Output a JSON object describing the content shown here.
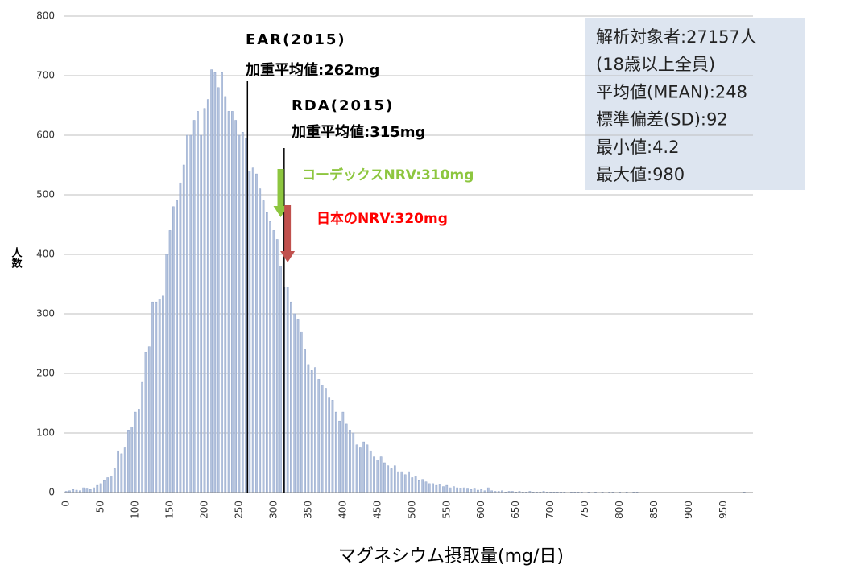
{
  "chart_data": {
    "type": "bar",
    "x_label": "マグネシウム摂取量(mg/日)",
    "y_label": "人数",
    "categories": [
      "0",
      null,
      null,
      null,
      null,
      null,
      null,
      null,
      null,
      null,
      "50",
      null,
      null,
      null,
      null,
      null,
      null,
      null,
      null,
      null,
      "100",
      null,
      null,
      null,
      null,
      null,
      null,
      null,
      null,
      null,
      "150",
      null,
      null,
      null,
      null,
      null,
      null,
      null,
      null,
      null,
      "200",
      null,
      null,
      null,
      null,
      null,
      null,
      null,
      null,
      null,
      "250",
      null,
      null,
      null,
      null,
      null,
      null,
      null,
      null,
      null,
      "300",
      null,
      null,
      null,
      null,
      null,
      null,
      null,
      null,
      null,
      "350",
      null,
      null,
      null,
      null,
      null,
      null,
      null,
      null,
      null,
      "400",
      null,
      null,
      null,
      null,
      null,
      null,
      null,
      null,
      null,
      "450",
      null,
      null,
      null,
      null,
      null,
      null,
      null,
      null,
      null,
      "500",
      null,
      null,
      null,
      null,
      null,
      null,
      null,
      null,
      null,
      "550",
      null,
      null,
      null,
      null,
      null,
      null,
      null,
      null,
      null,
      "600",
      null,
      null,
      null,
      null,
      null,
      null,
      null,
      null,
      null,
      "650",
      null,
      null,
      null,
      null,
      null,
      null,
      null,
      null,
      null,
      "700",
      null,
      null,
      null,
      null,
      null,
      null,
      null,
      null,
      null,
      "750",
      null,
      null,
      null,
      null,
      null,
      null,
      null,
      null,
      null,
      "800",
      null,
      null,
      null,
      null,
      null,
      null,
      null,
      null,
      null,
      "850",
      null,
      null,
      null,
      null,
      null,
      null,
      null,
      null,
      null,
      "900",
      null,
      null,
      null,
      null,
      null,
      null,
      null,
      null,
      null,
      "950",
      null,
      null,
      null,
      null,
      null,
      null,
      null,
      null
    ],
    "values": [
      2,
      3,
      5,
      4,
      3,
      8,
      6,
      5,
      8,
      12,
      15,
      20,
      25,
      28,
      40,
      70,
      65,
      75,
      105,
      110,
      135,
      140,
      185,
      235,
      245,
      320,
      320,
      325,
      330,
      400,
      440,
      480,
      490,
      520,
      550,
      600,
      600,
      625,
      640,
      600,
      645,
      660,
      710,
      705,
      680,
      705,
      665,
      640,
      640,
      625,
      600,
      605,
      595,
      540,
      545,
      535,
      510,
      490,
      470,
      455,
      440,
      425,
      380,
      345,
      345,
      320,
      300,
      290,
      270,
      240,
      215,
      205,
      210,
      190,
      180,
      175,
      160,
      155,
      135,
      120,
      135,
      115,
      105,
      100,
      80,
      75,
      85,
      80,
      70,
      60,
      55,
      60,
      50,
      45,
      40,
      45,
      35,
      35,
      30,
      35,
      25,
      28,
      20,
      22,
      18,
      15,
      15,
      12,
      14,
      10,
      12,
      8,
      10,
      8,
      7,
      8,
      6,
      5,
      6,
      4,
      5,
      3,
      8,
      3,
      2,
      2,
      3,
      1,
      2,
      2,
      1,
      2,
      1,
      1,
      2,
      1,
      1,
      1,
      2,
      1,
      1,
      1,
      1,
      1,
      1,
      0,
      1,
      1,
      1,
      1,
      0,
      1,
      0,
      1,
      0,
      1,
      0,
      1,
      1,
      0,
      1,
      0,
      1,
      0,
      1,
      1,
      0,
      0,
      0,
      0,
      0,
      0,
      0,
      0,
      0,
      0,
      0,
      0,
      0,
      0,
      0,
      0,
      0,
      0,
      0,
      0,
      0,
      0,
      0,
      0,
      0,
      0,
      0,
      0,
      0,
      0,
      1,
      0,
      0
    ],
    "category_step": 5,
    "color": "#b4c3de",
    "ylim": [
      0,
      800
    ],
    "yticks": [
      0,
      100,
      200,
      300,
      400,
      500,
      600,
      700,
      800
    ],
    "grid": true,
    "reference_lines": [
      {
        "name": "EAR(2015)",
        "label": "加重平均値:262mg",
        "x": 262
      },
      {
        "name": "RDA(2015)",
        "label": "加重平均値:315mg",
        "x": 315
      }
    ],
    "arrows": [
      {
        "label": "コーデックスNRV:310mg",
        "x": 310,
        "color": "#8dc63f",
        "arrow_color": "#8dc63f"
      },
      {
        "label": "日本のNRV:320mg",
        "x": 320,
        "color": "#ff0000",
        "arrow_color": "#c0504d"
      }
    ],
    "info": [
      "解析対象者:27157人",
      "(18歳以上全員)",
      "平均値(MEAN):248",
      "標準偏差(SD):92",
      "最小値:4.2",
      "最大値:980"
    ]
  }
}
